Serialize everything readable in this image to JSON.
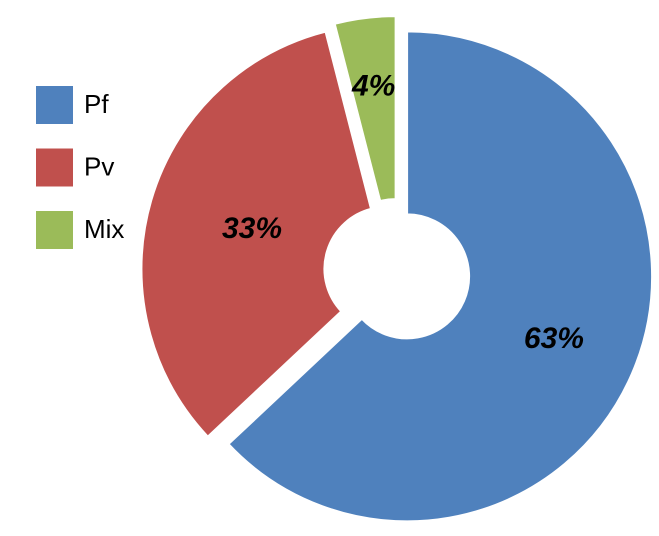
{
  "chart_data": {
    "type": "pie",
    "donut": true,
    "categories": [
      "Pf",
      "Pv",
      "Mix"
    ],
    "values": [
      63,
      33,
      4
    ],
    "value_labels": [
      "63%",
      "33%",
      "4%"
    ],
    "colors": [
      "#4f81bd",
      "#c0504d",
      "#9bbb59"
    ],
    "legend": "left"
  }
}
